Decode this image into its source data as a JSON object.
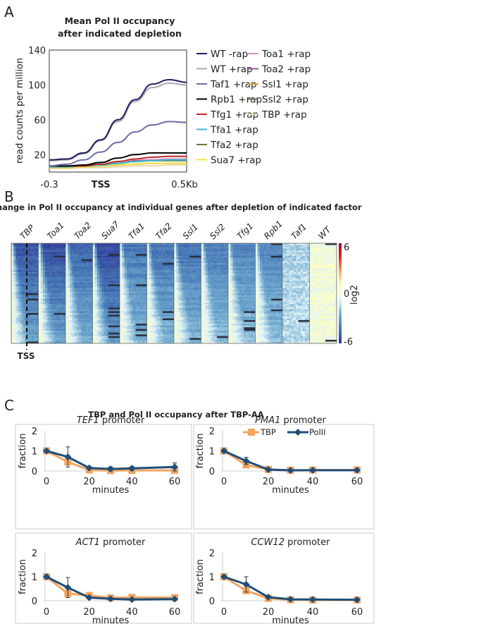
{
  "panels": {
    "a": "A",
    "b": "B",
    "c": "C"
  },
  "chart_data": [
    {
      "type": "line",
      "panel": "A",
      "title": [
        "Mean Pol II occupancy",
        "after indicated depletion"
      ],
      "ylabel": "read counts per million",
      "ylim": [
        0,
        140
      ],
      "yticks": [
        20,
        60,
        100,
        140
      ],
      "xlim": [
        -0.3,
        0.5
      ],
      "xtick_labels": [
        "-0.3",
        "TSS",
        "0.5Kb"
      ],
      "x": [
        -0.3,
        -0.2,
        -0.1,
        0,
        0.1,
        0.2,
        0.3,
        0.4,
        0.5
      ],
      "legend_position": "right",
      "series": [
        {
          "name": "WT -rap",
          "color": "#1f1f5e",
          "values": [
            14,
            15,
            22,
            37,
            60,
            83,
            101,
            106,
            103
          ]
        },
        {
          "name": "WT +rap",
          "color": "#a8a8b2",
          "values": [
            13,
            14,
            21,
            36,
            58,
            81,
            97,
            102,
            100
          ]
        },
        {
          "name": "Taf1 +rap",
          "color": "#6c6ca8",
          "values": [
            7,
            9,
            14,
            23,
            34,
            46,
            54,
            58,
            57
          ]
        },
        {
          "name": "Rpb1 +rap",
          "color": "#000000",
          "values": [
            7,
            7,
            8,
            11,
            16,
            20,
            22,
            22,
            22
          ]
        },
        {
          "name": "Tfg1 +rap",
          "color": "#c0282a",
          "values": [
            7,
            7,
            7,
            9,
            12,
            15,
            17,
            18,
            18
          ]
        },
        {
          "name": "Tfa1 +rap",
          "color": "#40b8c8",
          "values": [
            6,
            6,
            7,
            8,
            10,
            12,
            13,
            14,
            14
          ]
        },
        {
          "name": "Tfa2 +rap",
          "color": "#6b7a3a",
          "values": [
            6,
            6,
            7,
            8,
            10,
            12,
            13,
            13,
            13
          ]
        },
        {
          "name": "Sua7 +rap",
          "color": "#f0e040",
          "values": [
            5,
            5,
            6,
            7,
            8,
            9,
            10,
            10,
            10
          ]
        },
        {
          "name": "Toa1 +rap",
          "color": "#d48cc0",
          "values": [
            6,
            6,
            7,
            8,
            10,
            12,
            14,
            15,
            15
          ]
        },
        {
          "name": "Toa2 +rap",
          "color": "#9a5a9a",
          "values": [
            6,
            6,
            7,
            8,
            10,
            13,
            14,
            15,
            15
          ]
        },
        {
          "name": "Ssl1 +rap",
          "color": "#d8a040",
          "values": [
            5,
            5,
            6,
            7,
            8,
            9,
            10,
            10,
            10
          ]
        },
        {
          "name": "Ssl2 +rap",
          "color": "#7a6850",
          "values": [
            6,
            6,
            7,
            8,
            10,
            12,
            13,
            14,
            14
          ]
        },
        {
          "name": "TBP +rap",
          "color": "#e8d8b0",
          "values": [
            4,
            4,
            5,
            5,
            6,
            7,
            7,
            8,
            8
          ]
        }
      ]
    },
    {
      "type": "heatmap",
      "panel": "B",
      "title": "Change in Pol II occupancy at individual genes after depletion of indicated factor",
      "columns": [
        "TBP",
        "Toa1",
        "Toa2",
        "Sua7",
        "Tfa1",
        "Tfa2",
        "Ssl1",
        "Ssl2",
        "Tfg1",
        "Rpb1",
        "Taf1",
        "WT"
      ],
      "marker_label": "TSS",
      "colorbar": {
        "label": "log2",
        "ticks": [
          "6",
          "0",
          "-6"
        ],
        "range": [
          -6,
          6
        ],
        "colors": [
          "#313695",
          "#4575b4",
          "#74add1",
          "#e0f3f8",
          "#ffffbf",
          "#fdae61",
          "#d73027",
          "#a50026"
        ]
      }
    },
    {
      "type": "line",
      "panel": "C",
      "title": "TBP and Pol II occupancy after TBP-AA",
      "legend": [
        {
          "name": "TBP",
          "color": "#f4a460",
          "marker": "square"
        },
        {
          "name": "PolII",
          "color": "#1f4e79",
          "marker": "diamond"
        }
      ],
      "legend_position": "top-right (in PMA1 subplot)",
      "subplots": [
        {
          "gene": "TEF1",
          "suffix": " promoter",
          "xlabel": "minutes",
          "ylabel": "fraction",
          "x": [
            0,
            10,
            20,
            30,
            40,
            60
          ],
          "ylim": [
            0,
            2
          ],
          "yticks": [
            "0",
            "1",
            "2"
          ],
          "xticks": [
            "0",
            "20",
            "40",
            "60"
          ],
          "TBP": [
            1,
            0.45,
            0.05,
            0.02,
            0.03,
            0.03
          ],
          "PolII": [
            1,
            0.7,
            0.15,
            0.1,
            0.13,
            0.2
          ],
          "PolII_err": [
            0,
            0.5,
            0.08,
            0.1,
            0.1,
            0.2
          ]
        },
        {
          "gene": "PMA1",
          "suffix": " promoter",
          "xlabel": "minutes",
          "ylabel": "fraction",
          "x": [
            0,
            10,
            20,
            30,
            40,
            60
          ],
          "ylim": [
            0,
            2
          ],
          "yticks": [
            "0",
            "1",
            "2"
          ],
          "xticks": [
            "0",
            "20",
            "40",
            "60"
          ],
          "TBP": [
            1,
            0.3,
            0.08,
            0.04,
            0.05,
            0.05
          ],
          "PolII": [
            1,
            0.5,
            0.07,
            0.03,
            0.04,
            0.04
          ],
          "PolII_err": [
            0,
            0.18,
            0,
            0,
            0,
            0
          ]
        },
        {
          "gene": "ACT1",
          "suffix": " promoter",
          "xlabel": "minutes",
          "ylabel": "fraction",
          "x": [
            0,
            10,
            20,
            30,
            40,
            60
          ],
          "ylim": [
            0,
            2
          ],
          "yticks": [
            "0",
            "1",
            "2"
          ],
          "xticks": [
            "0",
            "20",
            "40",
            "60"
          ],
          "TBP": [
            1,
            0.3,
            0.22,
            0.12,
            0.14,
            0.13
          ],
          "PolII": [
            1,
            0.55,
            0.13,
            0.08,
            0.05,
            0.07
          ],
          "PolII_err": [
            0,
            0.42,
            0,
            0,
            0,
            0
          ]
        },
        {
          "gene": "CCW12",
          "suffix": " promoter",
          "xlabel": "minutes",
          "ylabel": "fraction",
          "x": [
            0,
            10,
            20,
            30,
            40,
            60
          ],
          "ylim": [
            0,
            2
          ],
          "yticks": [
            "0",
            "1",
            "2"
          ],
          "xticks": [
            "0",
            "20",
            "40",
            "60"
          ],
          "TBP": [
            1,
            0.42,
            0.1,
            0.04,
            0.03,
            0.03
          ],
          "PolII": [
            1,
            0.68,
            0.15,
            0.06,
            0.05,
            0.04
          ],
          "PolII_err": [
            0,
            0.32,
            0,
            0,
            0,
            0
          ]
        }
      ]
    }
  ]
}
